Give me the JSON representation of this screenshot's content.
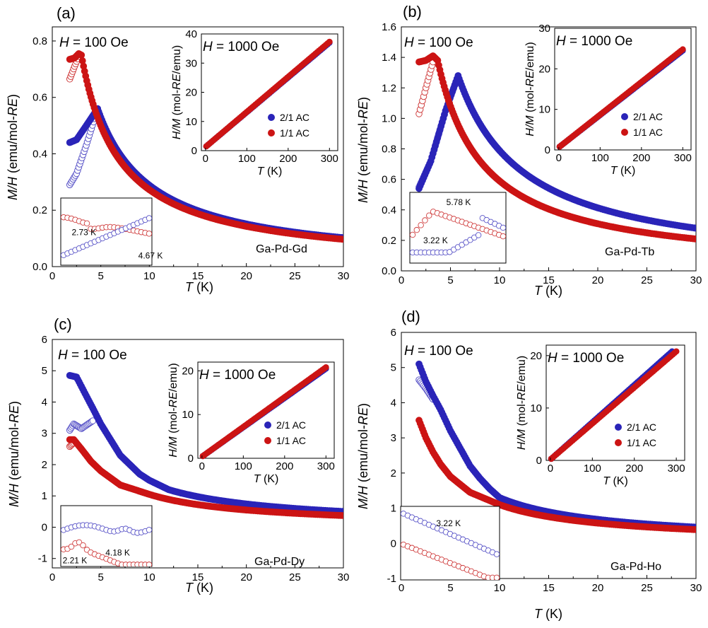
{
  "colors": {
    "blue": "#2a24b8",
    "red": "#cc1414",
    "open_blue": "#5a55c8",
    "open_red": "#d04040"
  },
  "chart_data": [
    {
      "type": "scatter",
      "panel_label": "(a)",
      "field_main": "H = 100 Oe",
      "xlabel_main": "T (K)",
      "ylabel_main": "M/H (emu/mol-RE)",
      "xlim": [
        0,
        30
      ],
      "ylim": [
        0,
        0.85
      ],
      "xticks": [
        "0",
        "5",
        "10",
        "15",
        "20",
        "25",
        "30"
      ],
      "yticks": [
        "0.0",
        "0.2",
        "0.4",
        "0.6",
        "0.8"
      ],
      "ytick_values": [
        0,
        0.2,
        0.4,
        0.6,
        0.8
      ],
      "sample": "Ga-Pd-Gd",
      "series": [
        {
          "name": "2/1 AC",
          "type": "FC",
          "theta": 1.0,
          "C": 2.95,
          "tmin": 1.8,
          "points": [
            [
              1.8,
              0.44
            ],
            [
              2.5,
              0.45
            ],
            [
              3.5,
              0.5
            ],
            [
              4.67,
              0.56
            ]
          ]
        },
        {
          "name": "1/1 AC",
          "type": "FC",
          "theta": 1.0,
          "C": 2.95,
          "tmin": 1.8,
          "points": [
            [
              1.8,
              0.735
            ],
            [
              2.3,
              0.74
            ],
            [
              2.73,
              0.755
            ],
            [
              3.0,
              0.75
            ]
          ]
        },
        {
          "name": "2/1 AC",
          "type": "ZFC",
          "points": [
            [
              1.8,
              0.29
            ],
            [
              2.5,
              0.33
            ],
            [
              3.5,
              0.43
            ],
            [
              4.67,
              0.56
            ]
          ]
        },
        {
          "name": "1/1 AC",
          "type": "ZFC",
          "points": [
            [
              1.8,
              0.665
            ],
            [
              2.3,
              0.71
            ],
            [
              2.73,
              0.745
            ]
          ]
        }
      ],
      "inset_field": "H = 1000 Oe",
      "inset_xlabel": "T (K)",
      "inset_ylabel": "H/M (mol-RE/emu)",
      "inset_xlim": [
        -10,
        320
      ],
      "inset_ylim": [
        0,
        40
      ],
      "inset_xticks": [
        "0",
        "100",
        "200",
        "300"
      ],
      "inset_yticks": [
        "0",
        "10",
        "20",
        "30",
        "40"
      ],
      "inset_ytick_values": [
        0,
        10,
        20,
        30,
        40
      ],
      "inset_series": [
        {
          "name": "2/1 AC",
          "x": [
            2,
            300
          ],
          "y": [
            1.5,
            37
          ]
        },
        {
          "name": "1/1 AC",
          "x": [
            2,
            300
          ],
          "y": [
            1.5,
            37.3
          ]
        }
      ],
      "zoom_labels": [
        "2.73 K",
        "4.67 K"
      ]
    },
    {
      "type": "scatter",
      "panel_label": "(b)",
      "field_main": "H = 100 Oe",
      "xlabel_main": "T (K)",
      "ylabel_main": "M/H (emu/mol-RE)",
      "xlim": [
        0,
        30
      ],
      "ylim": [
        0,
        1.6
      ],
      "xticks": [
        "0",
        "5",
        "10",
        "15",
        "20",
        "25",
        "30"
      ],
      "yticks": [
        "0.0",
        "0.2",
        "0.4",
        "0.6",
        "0.8",
        "1.0",
        "1.2",
        "1.4",
        "1.6"
      ],
      "ytick_values": [
        0,
        0.2,
        0.4,
        0.6,
        0.8,
        1.0,
        1.2,
        1.4,
        1.6
      ],
      "sample": "Ga-Pd-Tb",
      "series": [
        {
          "name": "2/1 AC",
          "type": "FC",
          "theta": 1.0,
          "C": 8.6,
          "tmin": 1.8,
          "points": [
            [
              1.8,
              0.54
            ],
            [
              3.0,
              0.72
            ],
            [
              4.5,
              1.05
            ],
            [
              5.78,
              1.28
            ]
          ]
        },
        {
          "name": "1/1 AC",
          "type": "FC",
          "theta": 1.0,
          "C": 8.6,
          "tmin": 1.8,
          "points": [
            [
              1.8,
              1.37
            ],
            [
              2.5,
              1.38
            ],
            [
              3.22,
              1.41
            ],
            [
              3.7,
              1.38
            ]
          ]
        },
        {
          "name": "2/1 AC",
          "type": "ZFC",
          "points": [
            [
              1.8,
              0.55
            ],
            [
              3.0,
              0.72
            ],
            [
              4.5,
              1.05
            ],
            [
              5.78,
              1.28
            ]
          ]
        },
        {
          "name": "1/1 AC",
          "type": "ZFC",
          "points": [
            [
              1.8,
              1.03
            ],
            [
              2.5,
              1.2
            ],
            [
              3.22,
              1.37
            ]
          ]
        }
      ],
      "inset_field": "H = 1000 Oe",
      "inset_xlabel": "T (K)",
      "inset_ylabel": "H/M (mol-RE/emu)",
      "inset_xlim": [
        -10,
        320
      ],
      "inset_ylim": [
        0,
        30
      ],
      "inset_xticks": [
        "0",
        "100",
        "200",
        "300"
      ],
      "inset_yticks": [
        "0",
        "10",
        "20",
        "30"
      ],
      "inset_ytick_values": [
        0,
        10,
        20,
        30
      ],
      "inset_series": [
        {
          "name": "2/1 AC",
          "x": [
            2,
            300
          ],
          "y": [
            0.8,
            24.5
          ]
        },
        {
          "name": "1/1 AC",
          "x": [
            2,
            300
          ],
          "y": [
            0.8,
            24.8
          ]
        }
      ],
      "zoom_labels": [
        "3.22 K",
        "5.78 K"
      ]
    },
    {
      "type": "scatter",
      "panel_label": "(c)",
      "field_main": "H = 100 Oe",
      "xlabel_main": "T (K)",
      "ylabel_main": "M/H (emu/mol-RE)",
      "xlim": [
        0,
        30
      ],
      "ylim": [
        -1.3,
        6
      ],
      "xticks": [
        "0",
        "5",
        "10",
        "15",
        "20",
        "25",
        "30"
      ],
      "yticks": [
        "-1",
        "0",
        "1",
        "2",
        "3",
        "4",
        "5",
        "6"
      ],
      "ytick_values": [
        -1,
        0,
        1,
        2,
        3,
        4,
        5,
        6
      ],
      "sample": "Ga-Pd-Dy",
      "series": [
        {
          "name": "2/1 AC",
          "type": "FC",
          "theta": 1.0,
          "C": 14.0,
          "tmin": 1.8,
          "points": [
            [
              1.8,
              4.85
            ],
            [
              2.5,
              4.8
            ],
            [
              3.5,
              4.2
            ],
            [
              4.18,
              3.8
            ],
            [
              5.0,
              3.3
            ],
            [
              6.0,
              2.8
            ],
            [
              7.0,
              2.3
            ],
            [
              8.0,
              2.0
            ],
            [
              9.0,
              1.7
            ],
            [
              10.0,
              1.5
            ],
            [
              12.0,
              1.2
            ]
          ]
        },
        {
          "name": "1/1 AC",
          "type": "FC",
          "theta": 1.0,
          "C": 13.0,
          "tmin": 1.8,
          "points": [
            [
              1.8,
              2.8
            ],
            [
              2.21,
              2.8
            ],
            [
              3.0,
              2.5
            ],
            [
              4.0,
              2.1
            ],
            [
              5.0,
              1.8
            ],
            [
              7.0,
              1.35
            ],
            [
              10.0,
              1.05
            ]
          ]
        },
        {
          "name": "2/1 AC",
          "type": "ZFC",
          "points": [
            [
              1.8,
              3.1
            ],
            [
              2.21,
              3.3
            ],
            [
              3.0,
              3.15
            ],
            [
              3.7,
              3.3
            ],
            [
              4.18,
              3.4
            ]
          ]
        },
        {
          "name": "1/1 AC",
          "type": "ZFC",
          "points": [
            [
              1.8,
              2.58
            ],
            [
              2.21,
              2.7
            ]
          ]
        }
      ],
      "inset_field": "H = 1000 Oe",
      "inset_xlabel": "T (K)",
      "inset_ylabel": "H/M (mol-RE/emu)",
      "inset_xlim": [
        -10,
        320
      ],
      "inset_ylim": [
        0,
        22
      ],
      "inset_xticks": [
        "0",
        "100",
        "200",
        "300"
      ],
      "inset_yticks": [
        "0",
        "10",
        "20"
      ],
      "inset_ytick_values": [
        0,
        10,
        20
      ],
      "inset_series": [
        {
          "name": "2/1 AC",
          "x": [
            2,
            300
          ],
          "y": [
            0.5,
            20.5
          ]
        },
        {
          "name": "1/1 AC",
          "x": [
            2,
            300
          ],
          "y": [
            0.5,
            20.8
          ]
        }
      ],
      "zoom_labels": [
        "2.21 K",
        "4.18 K"
      ]
    },
    {
      "type": "scatter",
      "panel_label": "(d)",
      "field_main": "H = 100 Oe",
      "xlabel_main": "T (K)",
      "ylabel_main": "M/H (emu/mol-RE)",
      "xlim": [
        0,
        30
      ],
      "ylim": [
        -1,
        6
      ],
      "xticks": [
        "0",
        "5",
        "10",
        "15",
        "20",
        "25",
        "30"
      ],
      "yticks": [
        "-1",
        "0",
        "1",
        "2",
        "3",
        "4",
        "5",
        "6"
      ],
      "ytick_values": [
        -1,
        0,
        1,
        2,
        3,
        4,
        5,
        6
      ],
      "sample": "Ga-Pd-Ho",
      "series": [
        {
          "name": "2/1 AC",
          "type": "FC",
          "theta": 1.0,
          "C": 14.0,
          "tmin": 1.8,
          "points": [
            [
              1.8,
              5.1
            ],
            [
              2.5,
              4.6
            ],
            [
              3.22,
              4.2
            ],
            [
              4.0,
              3.8
            ],
            [
              5.0,
              3.2
            ],
            [
              6.0,
              2.7
            ],
            [
              7.0,
              2.2
            ],
            [
              8.0,
              1.85
            ],
            [
              9.0,
              1.55
            ],
            [
              10.0,
              1.3
            ]
          ]
        },
        {
          "name": "1/1 AC",
          "type": "FC",
          "theta": 1.0,
          "C": 9.0,
          "tmin": 1.8,
          "points": [
            [
              1.8,
              3.5
            ],
            [
              2.5,
              3.0
            ],
            [
              3.22,
              2.6
            ],
            [
              4.0,
              2.25
            ],
            [
              5.0,
              1.9
            ],
            [
              7.0,
              1.45
            ],
            [
              10.0,
              1.1
            ]
          ]
        },
        {
          "name": "2/1 AC",
          "type": "ZFC",
          "points": [
            [
              1.8,
              4.65
            ],
            [
              2.5,
              4.4
            ],
            [
              3.22,
              4.1
            ]
          ]
        },
        {
          "name": "1/1 AC",
          "type": "ZFC",
          "points": []
        }
      ],
      "inset_field": "H = 1000 Oe",
      "inset_xlabel": "T (K)",
      "inset_ylabel": "H/M (mol-RE/emu)",
      "inset_xlim": [
        -10,
        320
      ],
      "inset_ylim": [
        0,
        22
      ],
      "inset_xticks": [
        "0",
        "100",
        "200",
        "300"
      ],
      "inset_yticks": [
        "0",
        "10",
        "20"
      ],
      "inset_ytick_values": [
        0,
        10,
        20
      ],
      "inset_series": [
        {
          "name": "2/1 AC",
          "x": [
            2,
            290
          ],
          "y": [
            0.3,
            20.8
          ]
        },
        {
          "name": "1/1 AC",
          "x": [
            2,
            300
          ],
          "y": [
            0.3,
            20.8
          ]
        }
      ],
      "zoom_labels": [
        "3.22 K"
      ]
    }
  ]
}
